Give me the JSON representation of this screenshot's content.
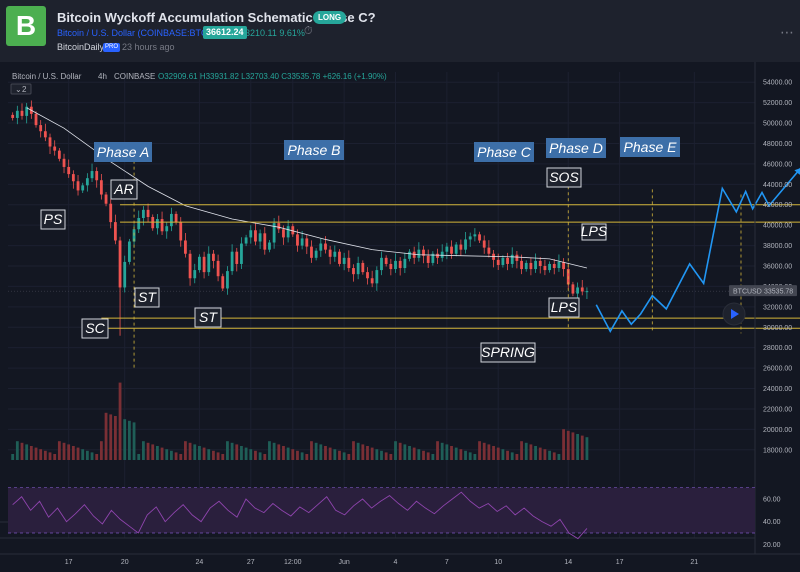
{
  "header": {
    "avatar_letter": "B",
    "title": "Bitcoin Wyckoff Accumulation Schematic Phase C?",
    "direction_badge": "LONG",
    "symbol_line": "Bitcoin / U.S. Dollar (COINBASE:BTCUSD)",
    "price": "36612.24",
    "change": "3210.11  9.61%",
    "author": "BitcoinDaily",
    "author_badge": "PRO",
    "posted": "23 hours ago"
  },
  "chart_data": {
    "type": "candlestick",
    "title": "",
    "legend": {
      "symbol": "Bitcoin / U.S. Dollar",
      "interval": "4h",
      "exchange": "COINBASE",
      "ohlc": "O32909.61 H33931.82 L32703.40 C33535.78 +626.16 (+1.90%)",
      "indicator_count": "2"
    },
    "price_axis_labels": [
      "54000.00",
      "52000.00",
      "50000.00",
      "48000.00",
      "46000.00",
      "44000.00",
      "42000.00",
      "40000.00",
      "38000.00",
      "36000.00",
      "34000.00",
      "32000.00",
      "30000.00",
      "28000.00",
      "26000.00",
      "24000.00",
      "22000.00",
      "20000.00",
      "18000.00"
    ],
    "ylim": [
      17000,
      55000
    ],
    "current_price_tag": {
      "symbol": "BTCUSD",
      "value": "33535.78",
      "price": 33535.78
    },
    "time_axis_labels": [
      "17",
      "20",
      "24",
      "27",
      "12:00",
      "Jun",
      "4",
      "7",
      "10",
      "14",
      "17",
      "21"
    ],
    "time_axis_positions": [
      13,
      25,
      41,
      52,
      61,
      72,
      83,
      94,
      105,
      120,
      131,
      147
    ],
    "xlim": [
      0,
      160
    ],
    "candles_close": [
      50500,
      51200,
      50700,
      51600,
      50900,
      49800,
      49200,
      48600,
      47700,
      47300,
      46500,
      45700,
      45000,
      44300,
      43400,
      43900,
      44600,
      45300,
      44400,
      43000,
      42100,
      40300,
      38500,
      33900,
      36400,
      38400,
      39600,
      40700,
      41500,
      40800,
      39700,
      40600,
      39400,
      39900,
      41100,
      40300,
      38500,
      37200,
      34800,
      35600,
      36900,
      35400,
      37200,
      36500,
      35000,
      33800,
      35500,
      37400,
      36200,
      38200,
      38800,
      39500,
      38400,
      39200,
      37600,
      38300,
      40200,
      39600,
      38800,
      39900,
      39100,
      38000,
      38700,
      37900,
      36800,
      37500,
      38200,
      37600,
      36900,
      37400,
      36200,
      36800,
      35800,
      35200,
      36300,
      35400,
      34800,
      34300,
      35600,
      36800,
      36200,
      35700,
      36500,
      35800,
      36700,
      37400,
      36800,
      37600,
      37000,
      36300,
      37200,
      36800,
      37400,
      37900,
      37200,
      38100,
      37600,
      38600,
      38900,
      39100,
      38500,
      37800,
      37200,
      36600,
      36100,
      36800,
      36200,
      37100,
      36500,
      35700,
      36300,
      35700,
      36500,
      36000,
      35600,
      36200,
      35800,
      36400,
      35700,
      34200,
      33300,
      33900,
      33500,
      33536
    ],
    "ma_line": [
      {
        "x": 4,
        "y": 51500
      },
      {
        "x": 12,
        "y": 49500
      },
      {
        "x": 22,
        "y": 46200
      },
      {
        "x": 30,
        "y": 43800
      },
      {
        "x": 38,
        "y": 41900
      },
      {
        "x": 48,
        "y": 40600
      },
      {
        "x": 58,
        "y": 39800
      },
      {
        "x": 68,
        "y": 38600
      },
      {
        "x": 78,
        "y": 37600
      },
      {
        "x": 88,
        "y": 37100
      },
      {
        "x": 98,
        "y": 37000
      },
      {
        "x": 108,
        "y": 36900
      },
      {
        "x": 116,
        "y": 36700
      },
      {
        "x": 124,
        "y": 35800
      }
    ],
    "volume_note": "volume histogram at bottom of main pane",
    "rsi": {
      "upper": 70,
      "lower": 30,
      "axis_labels": [
        "60.00",
        "40.00",
        "20.00"
      ],
      "ylim": [
        15,
        75
      ],
      "values": [
        55,
        62,
        50,
        58,
        44,
        52,
        40,
        47,
        55,
        45,
        38,
        50,
        42,
        36,
        30,
        46,
        53,
        40,
        48,
        55,
        46,
        40,
        52,
        58,
        50,
        44,
        60,
        52,
        48,
        56,
        50,
        45,
        53,
        48,
        55,
        62,
        50,
        46,
        54,
        60,
        52,
        58,
        63,
        56,
        50,
        58,
        52,
        47,
        54,
        60,
        66,
        58,
        52,
        56,
        49,
        54,
        46,
        52,
        45,
        40,
        36,
        42,
        30,
        25,
        34
      ]
    },
    "annotations": {
      "phase_labels": [
        "Phase A",
        "Phase B",
        "Phase C",
        "Phase D",
        "Phase E"
      ],
      "event_labels": [
        "PS",
        "AR",
        "SC",
        "ST",
        "ST",
        "SPRING",
        "LPS",
        "SOS",
        "LPS"
      ],
      "horizontal_levels": [
        42000,
        40300,
        30900,
        29900
      ],
      "projection_path": [
        {
          "x": 126,
          "y": 32200
        },
        {
          "x": 129,
          "y": 29600
        },
        {
          "x": 131.5,
          "y": 31600
        },
        {
          "x": 133.5,
          "y": 30300
        },
        {
          "x": 135.5,
          "y": 31300
        },
        {
          "x": 138,
          "y": 33100
        },
        {
          "x": 141,
          "y": 31800
        },
        {
          "x": 146,
          "y": 36200
        },
        {
          "x": 149,
          "y": 34300
        },
        {
          "x": 153,
          "y": 43600
        },
        {
          "x": 156,
          "y": 41300
        },
        {
          "x": 158,
          "y": 43300
        },
        {
          "x": 159.5,
          "y": 41600
        },
        {
          "x": 161.5,
          "y": 43200
        },
        {
          "x": 163,
          "y": 41900
        },
        {
          "x": 170,
          "y": 45700
        }
      ]
    }
  }
}
